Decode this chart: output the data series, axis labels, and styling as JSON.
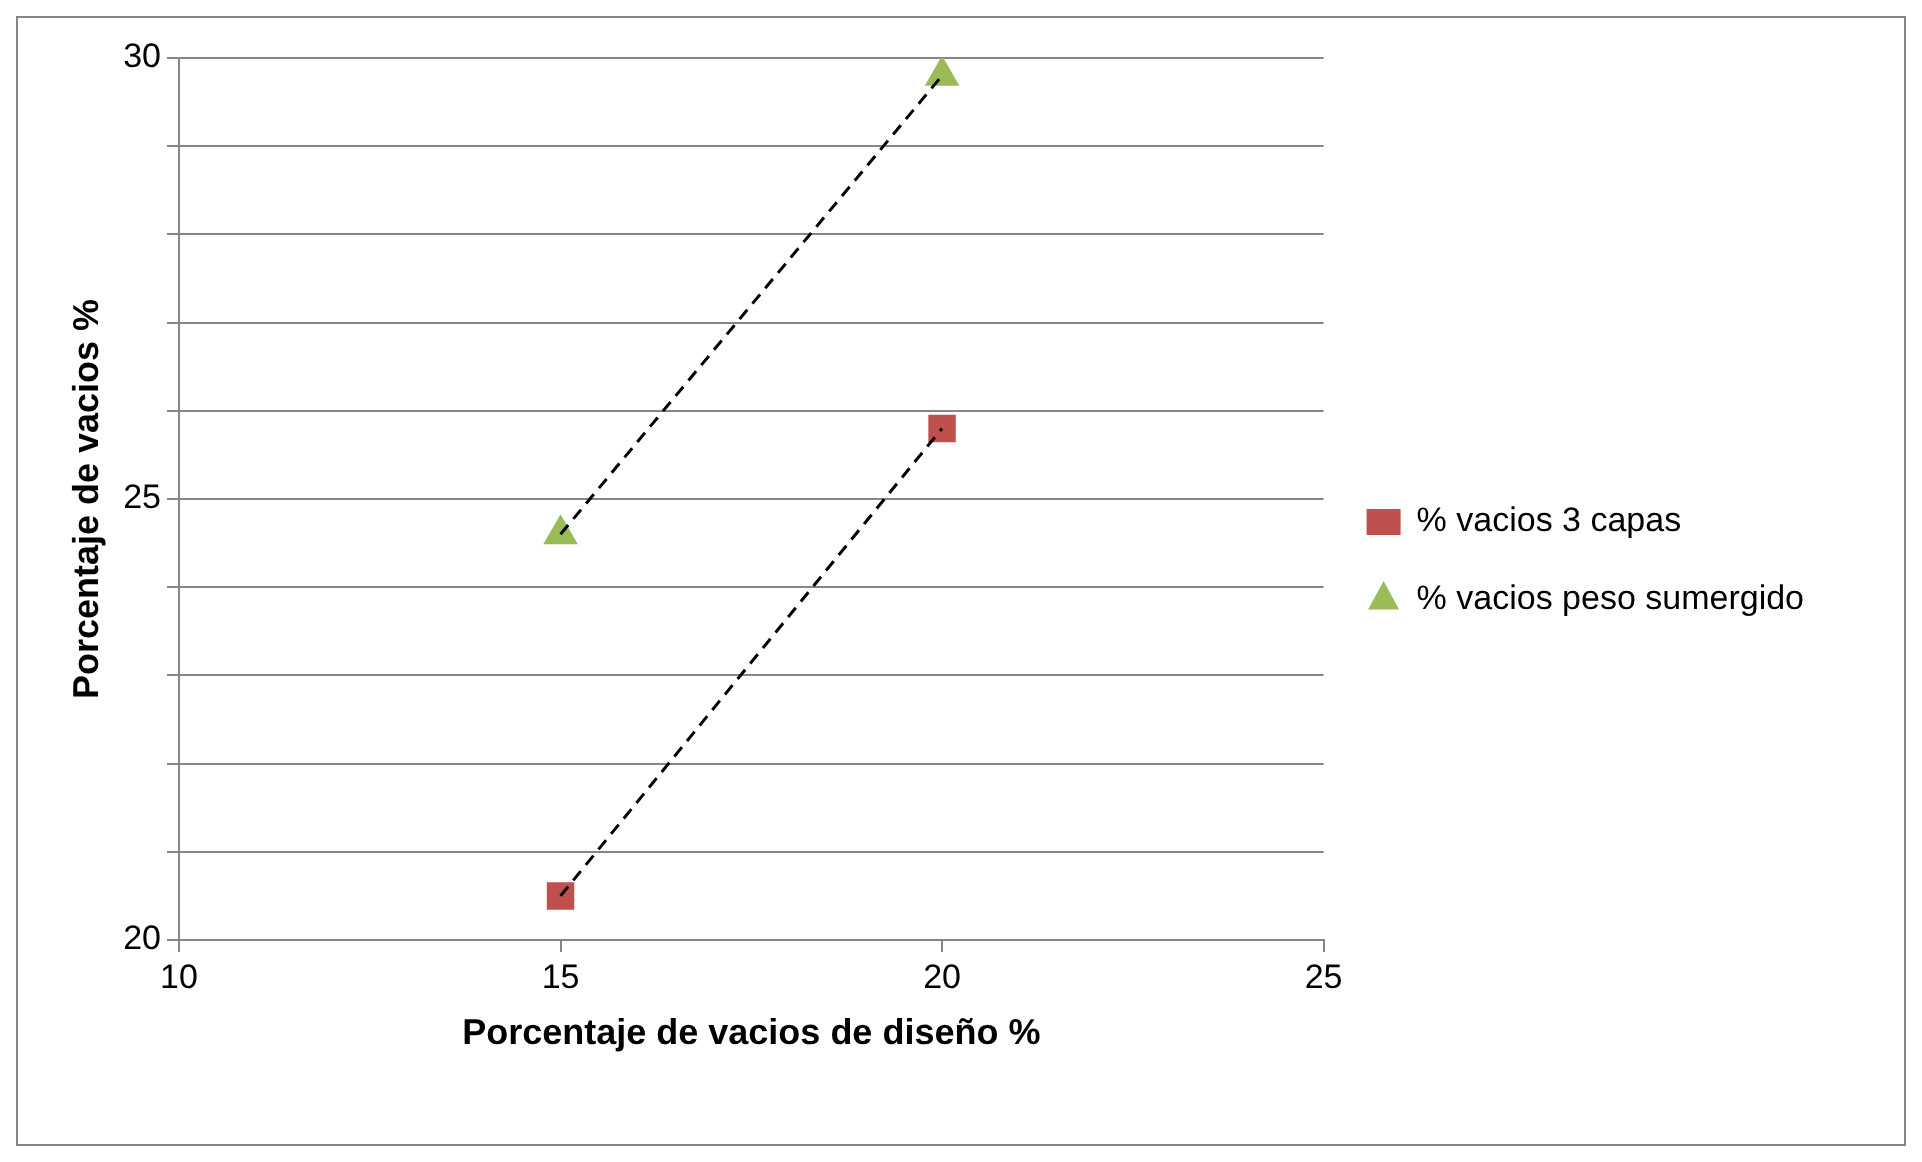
{
  "chart_data": {
    "type": "scatter",
    "xlabel": "Porcentaje de vacios de diseño %",
    "ylabel": "Porcentaje de vacios %",
    "xlim": [
      10,
      25
    ],
    "xticks": [
      10,
      15,
      20,
      25
    ],
    "ylim": [
      20,
      30
    ],
    "yticks": [
      20,
      {
        "value": 21,
        "label": null
      },
      {
        "value": 22,
        "label": null
      },
      {
        "value": 23,
        "label": null
      },
      {
        "value": 24,
        "label": null
      },
      25,
      {
        "value": 26,
        "label": null
      },
      {
        "value": 27,
        "label": null
      },
      {
        "value": 28,
        "label": null
      },
      {
        "value": 29,
        "label": null
      },
      30
    ],
    "grid": "y",
    "legend": "right",
    "x": [
      15,
      20
    ],
    "series": [
      {
        "name": "% vacios 3 capas",
        "color": "#c0504d",
        "marker": "square",
        "values": [
          20.5,
          25.8
        ]
      },
      {
        "name": "% vacios peso sumergido",
        "color": "#9bbb59",
        "marker": "triangle",
        "values": [
          24.6,
          29.8
        ]
      },
      {
        "type": "line",
        "color": "#000000",
        "line_style": "dashed",
        "marker": "none",
        "values": [
          20.5,
          25.8
        ]
      },
      {
        "type": "line",
        "color": "#000000",
        "line_style": "dashed",
        "marker": "none",
        "values": [
          24.6,
          29.8
        ]
      }
    ]
  }
}
